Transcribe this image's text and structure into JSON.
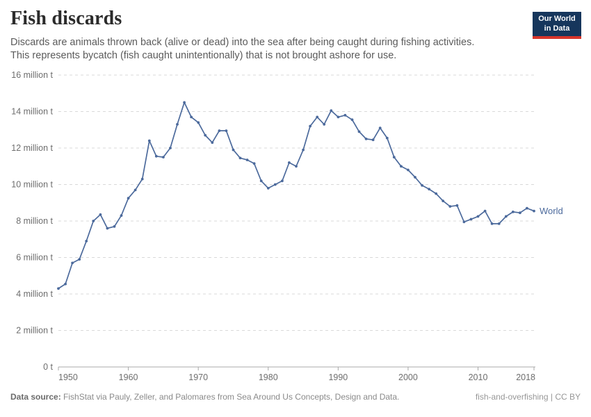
{
  "header": {
    "title": "Fish discards",
    "subtitle_lines": [
      "Discards are animals thrown back (alive or dead) into the sea after being caught during fishing activities.",
      "This represents bycatch (fish caught unintentionally) that is not brought ashore for use."
    ],
    "logo": {
      "line1": "Our World",
      "line2": "in Data"
    }
  },
  "footer": {
    "source_label": "Data source:",
    "source_text": " FishStat via Pauly, Zeller, and Palomares from Sea Around Us Concepts, Design and Data.",
    "note_right": "fish-and-overfishing | CC BY"
  },
  "chart_data": {
    "type": "line",
    "title": "Fish discards",
    "unit": "million tonnes",
    "entity_label": "World",
    "line_color": "#4C6A9C",
    "xlim": [
      1950,
      2018
    ],
    "ylim": [
      0,
      16
    ],
    "grid": "horizontal dashed",
    "legend_position": "end-of-line",
    "x_ticks": [
      1950,
      1960,
      1970,
      1980,
      1990,
      2000,
      2010,
      2018
    ],
    "y_ticks": [
      {
        "value": 0,
        "label": "0 t"
      },
      {
        "value": 2,
        "label": "2 million t"
      },
      {
        "value": 4,
        "label": "4 million t"
      },
      {
        "value": 6,
        "label": "6 million t"
      },
      {
        "value": 8,
        "label": "8 million t"
      },
      {
        "value": 10,
        "label": "10 million t"
      },
      {
        "value": 12,
        "label": "12 million t"
      },
      {
        "value": 14,
        "label": "14 million t"
      },
      {
        "value": 16,
        "label": "16 million t"
      }
    ],
    "x": [
      1950,
      1951,
      1952,
      1953,
      1954,
      1955,
      1956,
      1957,
      1958,
      1959,
      1960,
      1961,
      1962,
      1963,
      1964,
      1965,
      1966,
      1967,
      1968,
      1969,
      1970,
      1971,
      1972,
      1973,
      1974,
      1975,
      1976,
      1977,
      1978,
      1979,
      1980,
      1981,
      1982,
      1983,
      1984,
      1985,
      1986,
      1987,
      1988,
      1989,
      1990,
      1991,
      1992,
      1993,
      1994,
      1995,
      1996,
      1997,
      1998,
      1999,
      2000,
      2001,
      2002,
      2003,
      2004,
      2005,
      2006,
      2007,
      2008,
      2009,
      2010,
      2011,
      2012,
      2013,
      2014,
      2015,
      2016,
      2017,
      2018
    ],
    "series": [
      {
        "name": "World",
        "values": [
          4.3,
          4.55,
          5.7,
          5.9,
          6.9,
          8.0,
          8.35,
          7.6,
          7.7,
          8.3,
          9.25,
          9.7,
          10.3,
          12.4,
          11.55,
          11.5,
          12.0,
          13.3,
          14.5,
          13.7,
          13.4,
          12.7,
          12.3,
          12.95,
          12.95,
          11.9,
          11.45,
          11.35,
          11.15,
          10.2,
          9.8,
          10.0,
          10.2,
          11.2,
          11.0,
          11.9,
          13.2,
          13.7,
          13.3,
          14.05,
          13.7,
          13.8,
          13.55,
          12.9,
          12.5,
          12.45,
          13.1,
          12.55,
          11.5,
          11.0,
          10.8,
          10.4,
          9.95,
          9.75,
          9.5,
          9.1,
          8.8,
          8.85,
          7.95,
          8.1,
          8.25,
          8.55,
          7.85,
          7.85,
          8.25,
          8.5,
          8.45,
          8.7,
          8.55
        ]
      }
    ]
  }
}
